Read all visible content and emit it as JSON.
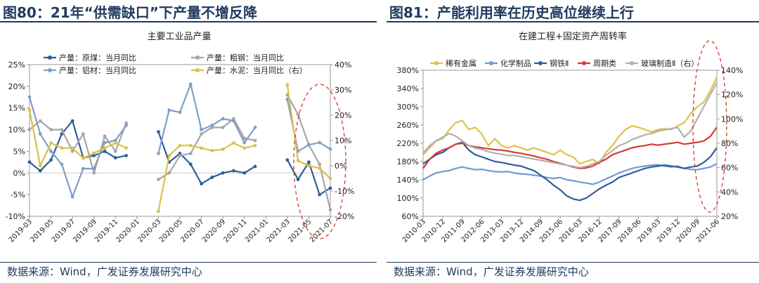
{
  "panels": [
    {
      "heading": "图80：21年“供需缺口”下产量不增反降",
      "source": "数据来源：Wind，广发证券发展研究中心"
    },
    {
      "heading": "图81：产能利用率在历史高位继续上行",
      "source": "数据来源：Wind，广发证券发展研究中心"
    }
  ],
  "chart_data": [
    {
      "type": "line",
      "title": "主要工业品产量",
      "categories": [
        "2019-03",
        "2019-04",
        "2019-05",
        "2019-06",
        "2019-07",
        "2019-08",
        "2019-09",
        "2019-10",
        "2019-11",
        "2019-12",
        "2020-01",
        "2020-02",
        "2020-03",
        "2020-04",
        "2020-05",
        "2020-06",
        "2020-07",
        "2020-08",
        "2020-09",
        "2020-10",
        "2020-11",
        "2020-12",
        "2021-01",
        "2021-02",
        "2021-03",
        "2021-04",
        "2021-05",
        "2021-06",
        "2021-07"
      ],
      "x_tick_labels": [
        "2019-03",
        "2019-05",
        "2019-07",
        "2019-09",
        "2019-11",
        "2020-01",
        "2020-03",
        "2020-05",
        "2020-07",
        "2020-09",
        "2020-11",
        "2021-01",
        "2021-03",
        "2021-05",
        "2021-07"
      ],
      "y_left": {
        "ylim": [
          -10,
          25
        ],
        "ticks": [
          "-10%",
          "-5%",
          "0%",
          "5%",
          "10%",
          "15%",
          "20%",
          "25%"
        ]
      },
      "y_right": {
        "ylim": [
          -20,
          40
        ],
        "ticks": [
          "-20%",
          "-10%",
          "0%",
          "10%",
          "20%",
          "30%",
          "40%"
        ]
      },
      "legend_placement": "top",
      "annotation": "dashed ellipse highlighting 2021-04 to 2021-07",
      "series": [
        {
          "name": "产量：原煤：当月同比",
          "axis": "left",
          "color": "#2e5f97",
          "values": [
            2.5,
            0.5,
            3.0,
            9.0,
            12.0,
            3.5,
            4.0,
            5.0,
            3.5,
            4.0,
            null,
            null,
            9.5,
            2.5,
            4.5,
            2.0,
            -2.5,
            -1.0,
            0.0,
            0.5,
            0.0,
            1.5,
            null,
            null,
            3.0,
            -1.5,
            2.5,
            -5.0,
            -3.5
          ]
        },
        {
          "name": "产量：粗钢：当月同比",
          "axis": "left",
          "color": "#a6a6a6",
          "values": [
            10.0,
            12.0,
            10.0,
            10.0,
            5.0,
            9.0,
            0.0,
            8.5,
            5.0,
            11.5,
            null,
            null,
            -1.5,
            0.0,
            4.0,
            4.5,
            9.0,
            10.5,
            10.5,
            12.5,
            8.0,
            7.5,
            null,
            null,
            18.0,
            13.5,
            6.5,
            2.0,
            -8.5
          ]
        },
        {
          "name": "产量：铝材：当月同比",
          "axis": "left",
          "color": "#7f9fc8",
          "values": [
            17.5,
            9.0,
            5.0,
            2.0,
            -5.5,
            1.0,
            1.0,
            7.0,
            7.5,
            11.0,
            null,
            null,
            4.5,
            14.5,
            14.0,
            20.5,
            10.0,
            11.0,
            12.5,
            12.0,
            7.0,
            10.5,
            null,
            null,
            17.0,
            5.0,
            6.5,
            7.0,
            5.5
          ]
        },
        {
          "name": "产量：水泥：当月同比（右）",
          "axis": "right",
          "color": "#d9c24a",
          "values": [
            22.0,
            0.0,
            9.0,
            7.0,
            7.0,
            3.0,
            5.0,
            7.0,
            9.0,
            7.0,
            null,
            null,
            -18.0,
            4.0,
            8.0,
            8.0,
            7.0,
            6.0,
            6.5,
            9.0,
            7.0,
            8.0,
            null,
            null,
            32.0,
            2.0,
            0.0,
            -1.0,
            -5.0
          ]
        }
      ]
    },
    {
      "type": "line",
      "title": "在建工程+固定资产周转率",
      "x_tick_labels": [
        "2010-03",
        "2010-12",
        "2011-09",
        "2012-06",
        "2013-03",
        "2013-12",
        "2014-09",
        "2015-06",
        "2016-03",
        "2016-12",
        "2017-09",
        "2018-06",
        "2019-03",
        "2019-12",
        "2020-09",
        "2021-06"
      ],
      "x": [
        "2010-03",
        "2010-06",
        "2010-09",
        "2010-12",
        "2011-03",
        "2011-06",
        "2011-09",
        "2011-12",
        "2012-03",
        "2012-06",
        "2012-09",
        "2012-12",
        "2013-03",
        "2013-06",
        "2013-09",
        "2013-12",
        "2014-03",
        "2014-06",
        "2014-09",
        "2014-12",
        "2015-03",
        "2015-06",
        "2015-09",
        "2015-12",
        "2016-03",
        "2016-06",
        "2016-09",
        "2016-12",
        "2017-03",
        "2017-06",
        "2017-09",
        "2017-12",
        "2018-03",
        "2018-06",
        "2018-09",
        "2018-12",
        "2019-03",
        "2019-06",
        "2019-09",
        "2019-12",
        "2020-03",
        "2020-06",
        "2020-09",
        "2020-12",
        "2021-03",
        "2021-06"
      ],
      "y_left": {
        "ylim": [
          60,
          380
        ],
        "ticks": [
          "60%",
          "100%",
          "140%",
          "180%",
          "220%",
          "260%",
          "300%",
          "340%",
          "380%"
        ]
      },
      "y_right": {
        "ylim": [
          20,
          140
        ],
        "ticks": [
          "20%",
          "40%",
          "60%",
          "80%",
          "100%",
          "120%",
          "140%"
        ]
      },
      "legend_placement": "top",
      "annotation": "dashed ellipse highlighting 2020-09 to 2021-06",
      "series": [
        {
          "name": "稀有金属",
          "axis": "left",
          "color": "#e0c24a",
          "values": [
            195,
            210,
            225,
            230,
            250,
            265,
            270,
            250,
            255,
            240,
            215,
            230,
            215,
            210,
            215,
            210,
            205,
            210,
            205,
            200,
            195,
            205,
            195,
            190,
            175,
            180,
            185,
            175,
            200,
            215,
            235,
            250,
            258,
            255,
            250,
            245,
            250,
            252,
            250,
            258,
            265,
            285,
            300,
            310,
            335,
            365
          ]
        },
        {
          "name": "化学制品",
          "axis": "left",
          "color": "#6f9bd1",
          "values": [
            140,
            148,
            155,
            158,
            160,
            165,
            168,
            165,
            162,
            163,
            160,
            158,
            157,
            158,
            155,
            153,
            152,
            150,
            148,
            145,
            143,
            145,
            140,
            138,
            135,
            133,
            130,
            135,
            142,
            148,
            155,
            160,
            165,
            168,
            170,
            172,
            173,
            170,
            168,
            170,
            165,
            163,
            162,
            165,
            168,
            175
          ]
        },
        {
          "name": "钢铁Ⅱ",
          "axis": "left",
          "color": "#2e5f97",
          "values": [
            175,
            185,
            195,
            200,
            210,
            218,
            222,
            205,
            195,
            190,
            185,
            180,
            178,
            175,
            172,
            170,
            165,
            160,
            150,
            140,
            128,
            118,
            105,
            98,
            95,
            100,
            110,
            120,
            128,
            135,
            145,
            150,
            155,
            160,
            165,
            168,
            170,
            172,
            170,
            168,
            165,
            168,
            170,
            178,
            190,
            210
          ]
        },
        {
          "name": "周期类",
          "axis": "left",
          "color": "#d63c2f",
          "values": [
            165,
            185,
            198,
            205,
            210,
            218,
            220,
            215,
            212,
            210,
            208,
            206,
            205,
            203,
            200,
            198,
            195,
            192,
            188,
            185,
            180,
            176,
            172,
            168,
            165,
            166,
            170,
            178,
            185,
            195,
            200,
            205,
            210,
            213,
            215,
            218,
            216,
            218,
            220,
            222,
            218,
            220,
            222,
            225,
            235,
            255
          ]
        },
        {
          "name": "玻璃制造Ⅱ（右）",
          "axis": "right",
          "color": "#b0b0b0",
          "values": [
            72,
            78,
            82,
            85,
            88,
            86,
            82,
            78,
            76,
            75,
            73,
            72,
            71,
            70,
            70,
            69,
            68,
            67,
            66,
            65,
            64,
            63,
            62,
            61,
            60,
            61,
            63,
            65,
            70,
            74,
            78,
            80,
            83,
            85,
            87,
            88,
            90,
            91,
            92,
            93,
            85,
            90,
            100,
            110,
            120,
            130
          ]
        }
      ]
    }
  ]
}
